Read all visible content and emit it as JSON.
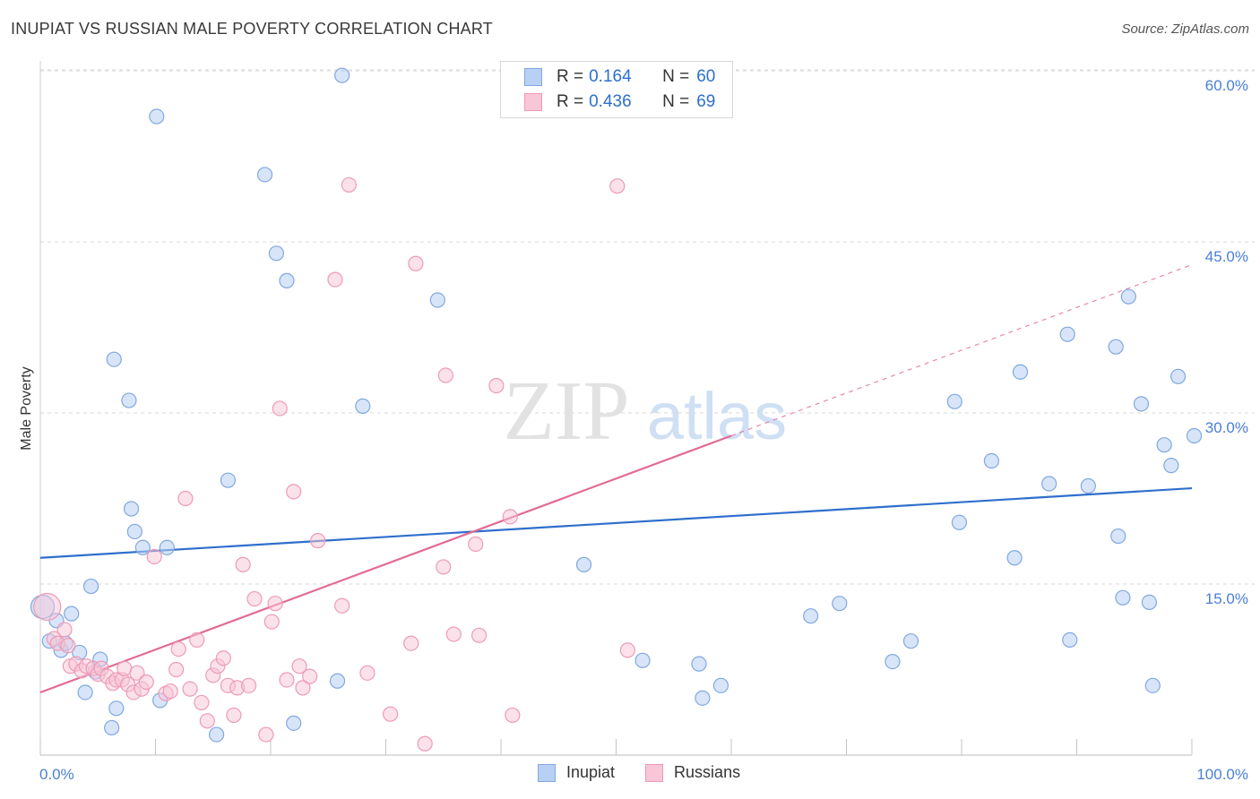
{
  "title": "INUPIAT VS RUSSIAN MALE POVERTY CORRELATION CHART",
  "source": "Source: ZipAtlas.com",
  "watermark": {
    "zip": "ZIP",
    "atlas": "atlas"
  },
  "legend": {
    "r_label": "R =",
    "n_label": "N =",
    "rows": [
      {
        "name": "Inupiat",
        "r": "0.164",
        "n": "60"
      },
      {
        "name": "Russians",
        "r": "0.436",
        "n": "69"
      }
    ]
  },
  "colors": {
    "inupiat_fill": "#b8d0f4",
    "inupiat_stroke": "#7fa8e0",
    "inupiat_line": "#2f6fcc",
    "russians_fill": "#f8c6d6",
    "russians_stroke": "#ee9ab6",
    "russians_line": "#e26a95",
    "grid": "#d9d9d9",
    "tick_text": "#4a7fd4"
  },
  "chart_data": {
    "type": "scatter",
    "title": "INUPIAT VS RUSSIAN MALE POVERTY CORRELATION CHART",
    "xlabel": "",
    "ylabel": "Male Poverty",
    "xlim": [
      0,
      100
    ],
    "ylim": [
      0,
      61.5
    ],
    "x_tick_labels": [
      "0.0%",
      "100.0%"
    ],
    "y_ticks": [
      15,
      30,
      45,
      60
    ],
    "y_tick_labels": [
      "15.0%",
      "30.0%",
      "45.0%",
      "60.0%"
    ],
    "grid": true,
    "legend_position": "top-center",
    "series": [
      {
        "name": "Inupiat",
        "r": 0.164,
        "n": 60,
        "trend": {
          "x": [
            0,
            100
          ],
          "y": [
            17.3,
            23.4
          ]
        },
        "points": [
          [
            0.2,
            13.0
          ],
          [
            0.8,
            10.0
          ],
          [
            1.4,
            11.8
          ],
          [
            1.8,
            9.2
          ],
          [
            2.2,
            9.8
          ],
          [
            2.7,
            12.4
          ],
          [
            3.4,
            9.0
          ],
          [
            3.9,
            5.5
          ],
          [
            4.4,
            14.8
          ],
          [
            4.8,
            7.3
          ],
          [
            5.2,
            8.4
          ],
          [
            6.2,
            2.4
          ],
          [
            6.4,
            34.7
          ],
          [
            6.6,
            4.1
          ],
          [
            7.7,
            31.1
          ],
          [
            7.9,
            21.6
          ],
          [
            8.2,
            19.6
          ],
          [
            8.9,
            18.2
          ],
          [
            10.1,
            56.0
          ],
          [
            10.4,
            4.8
          ],
          [
            11.0,
            18.2
          ],
          [
            15.3,
            1.8
          ],
          [
            16.3,
            24.1
          ],
          [
            19.5,
            50.9
          ],
          [
            20.5,
            44.0
          ],
          [
            21.4,
            41.6
          ],
          [
            22.0,
            2.8
          ],
          [
            25.8,
            6.5
          ],
          [
            26.2,
            59.6
          ],
          [
            28.0,
            30.6
          ],
          [
            34.5,
            39.9
          ],
          [
            47.2,
            16.7
          ],
          [
            52.3,
            8.3
          ],
          [
            57.2,
            8.0
          ],
          [
            57.5,
            5.0
          ],
          [
            59.1,
            6.1
          ],
          [
            66.9,
            12.2
          ],
          [
            69.4,
            13.3
          ],
          [
            74.0,
            8.2
          ],
          [
            75.6,
            10.0
          ],
          [
            79.4,
            31.0
          ],
          [
            79.8,
            20.4
          ],
          [
            82.6,
            25.8
          ],
          [
            84.6,
            17.3
          ],
          [
            85.1,
            33.6
          ],
          [
            87.6,
            23.8
          ],
          [
            89.2,
            36.9
          ],
          [
            89.4,
            10.1
          ],
          [
            91.0,
            23.6
          ],
          [
            93.4,
            35.8
          ],
          [
            93.6,
            19.2
          ],
          [
            94.0,
            13.8
          ],
          [
            94.5,
            40.2
          ],
          [
            95.6,
            30.8
          ],
          [
            96.3,
            13.4
          ],
          [
            96.6,
            6.1
          ],
          [
            97.6,
            27.2
          ],
          [
            98.2,
            25.4
          ],
          [
            98.8,
            33.2
          ],
          [
            100.2,
            28.0
          ]
        ]
      },
      {
        "name": "Russians",
        "r": 0.436,
        "n": 69,
        "trend_solid": {
          "x": [
            0,
            60
          ],
          "y": [
            5.5,
            28.0
          ]
        },
        "trend_dashed": {
          "x": [
            60,
            100
          ],
          "y": [
            28.0,
            43.0
          ]
        },
        "points": [
          [
            0.6,
            13.0
          ],
          [
            1.2,
            10.2
          ],
          [
            1.5,
            9.8
          ],
          [
            2.1,
            11.0
          ],
          [
            2.4,
            9.6
          ],
          [
            2.6,
            7.8
          ],
          [
            3.1,
            8.0
          ],
          [
            3.6,
            7.4
          ],
          [
            4.0,
            7.8
          ],
          [
            4.6,
            7.6
          ],
          [
            5.0,
            7.1
          ],
          [
            5.3,
            7.6
          ],
          [
            5.8,
            6.9
          ],
          [
            6.3,
            6.3
          ],
          [
            6.6,
            6.6
          ],
          [
            7.1,
            6.6
          ],
          [
            7.3,
            7.6
          ],
          [
            7.6,
            6.2
          ],
          [
            8.1,
            5.5
          ],
          [
            8.4,
            7.2
          ],
          [
            8.8,
            5.8
          ],
          [
            9.2,
            6.4
          ],
          [
            9.9,
            17.4
          ],
          [
            10.9,
            5.4
          ],
          [
            11.3,
            5.6
          ],
          [
            11.8,
            7.5
          ],
          [
            12.0,
            9.3
          ],
          [
            12.6,
            22.5
          ],
          [
            13.0,
            5.8
          ],
          [
            13.6,
            10.1
          ],
          [
            14.0,
            4.6
          ],
          [
            14.5,
            3.0
          ],
          [
            15.0,
            7.0
          ],
          [
            15.4,
            7.8
          ],
          [
            15.9,
            8.5
          ],
          [
            16.3,
            6.1
          ],
          [
            16.8,
            3.5
          ],
          [
            17.1,
            5.9
          ],
          [
            17.6,
            16.7
          ],
          [
            18.1,
            6.1
          ],
          [
            18.6,
            13.7
          ],
          [
            19.6,
            1.8
          ],
          [
            20.1,
            11.7
          ],
          [
            20.4,
            13.3
          ],
          [
            20.8,
            30.4
          ],
          [
            21.4,
            6.6
          ],
          [
            22.0,
            23.1
          ],
          [
            22.5,
            7.8
          ],
          [
            22.8,
            5.9
          ],
          [
            23.4,
            6.9
          ],
          [
            24.1,
            18.8
          ],
          [
            25.6,
            41.7
          ],
          [
            26.2,
            13.1
          ],
          [
            26.8,
            50.0
          ],
          [
            28.4,
            7.2
          ],
          [
            30.4,
            3.6
          ],
          [
            32.2,
            9.8
          ],
          [
            32.6,
            43.1
          ],
          [
            33.4,
            1.0
          ],
          [
            35.0,
            16.5
          ],
          [
            35.2,
            33.3
          ],
          [
            35.9,
            10.6
          ],
          [
            37.8,
            18.5
          ],
          [
            38.1,
            10.5
          ],
          [
            39.6,
            32.4
          ],
          [
            40.8,
            20.9
          ],
          [
            41.0,
            3.5
          ],
          [
            50.1,
            49.9
          ],
          [
            51.0,
            9.2
          ]
        ]
      }
    ]
  }
}
